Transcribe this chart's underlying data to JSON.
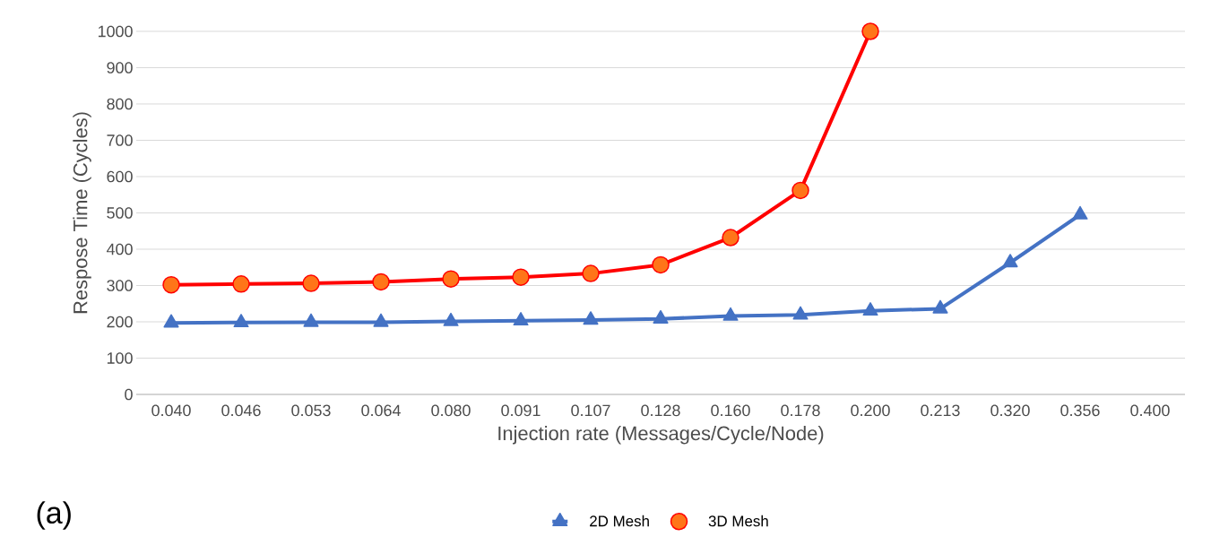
{
  "chart_data": {
    "type": "line",
    "xlabel": "Injection rate (Messages/Cycle/Node)",
    "ylabel": "Respose Time (Cycles)",
    "categories": [
      "0.040",
      "0.046",
      "0.053",
      "0.064",
      "0.080",
      "0.091",
      "0.107",
      "0.128",
      "0.160",
      "0.178",
      "0.200",
      "0.213",
      "0.320",
      "0.356",
      "0.400"
    ],
    "series": [
      {
        "name": "2D Mesh",
        "color": "#4472c4",
        "marker": "triangle",
        "values": [
          197,
          198,
          199,
          199,
          201,
          203,
          205,
          208,
          216,
          219,
          230,
          236,
          363,
          495,
          null
        ]
      },
      {
        "name": "3D Mesh",
        "color": "#ff0000",
        "marker": "circle",
        "values": [
          302,
          304,
          306,
          310,
          318,
          323,
          333,
          357,
          432,
          562,
          1000,
          null,
          null,
          null,
          null
        ]
      }
    ],
    "ylim": [
      0,
      1000
    ],
    "yticks": [
      0,
      100,
      200,
      300,
      400,
      500,
      600,
      700,
      800,
      900,
      1000
    ],
    "grid": "y",
    "legend": "bottom",
    "annotations": [
      "(a)"
    ]
  }
}
